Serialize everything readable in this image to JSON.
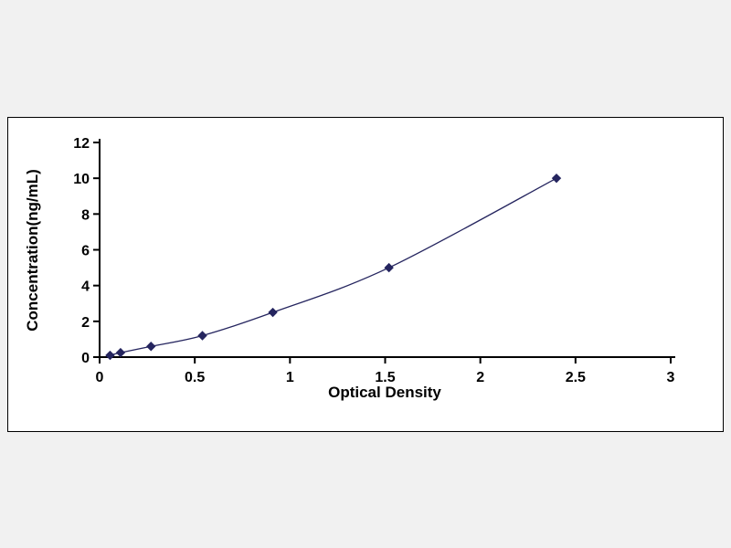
{
  "page": {
    "background_color": "#f1f1f1",
    "panel_background": "#ffffff",
    "panel_border_color": "#000000",
    "axis_color": "#000000",
    "text_color": "#000000"
  },
  "chart_data": {
    "type": "line",
    "title": "",
    "xlabel": "Optical Density",
    "ylabel": "Concentration(ng/mL)",
    "x": [
      0.055,
      0.11,
      0.27,
      0.54,
      0.91,
      1.52,
      2.4
    ],
    "y": [
      0.1,
      0.25,
      0.6,
      1.2,
      2.5,
      5,
      10
    ],
    "xlim": [
      0,
      3
    ],
    "ylim": [
      0,
      12
    ],
    "x_ticks": [
      0,
      0.5,
      1,
      1.5,
      2,
      2.5,
      3
    ],
    "y_ticks": [
      0,
      2,
      4,
      6,
      8,
      10,
      12
    ],
    "grid": false,
    "legend": "none",
    "line_color": "#25255f",
    "marker": "diamond",
    "marker_color": "#25255f"
  }
}
